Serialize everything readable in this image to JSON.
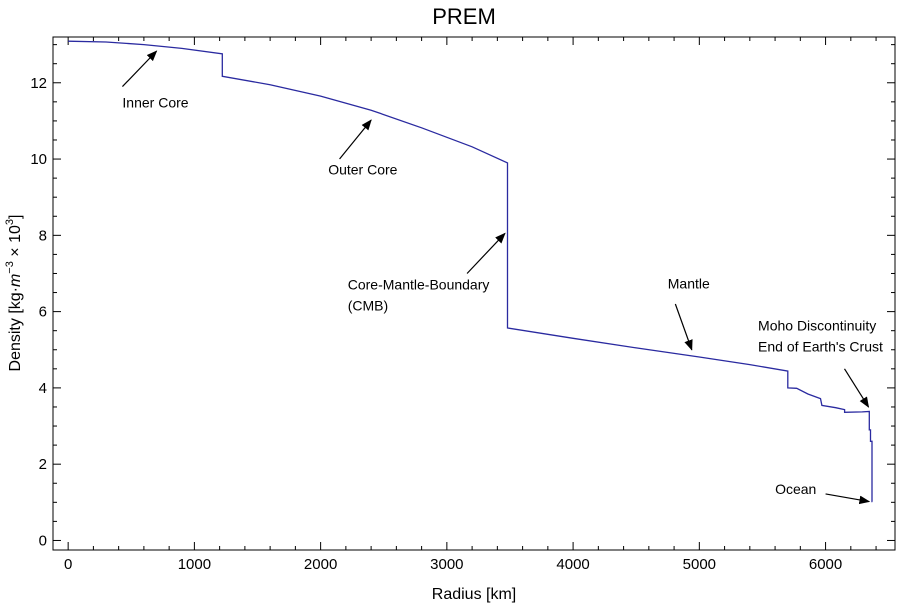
{
  "chart_data": {
    "type": "line",
    "title": "PREM",
    "xlabel": "Radius [km]",
    "ylabel": "Density [kg·m⁻³ × 10³]",
    "xlim": [
      -120,
      6550
    ],
    "ylim": [
      -0.25,
      13.2
    ],
    "x_ticks": [
      0,
      1000,
      2000,
      3000,
      4000,
      5000,
      6000
    ],
    "y_ticks": [
      0,
      2,
      4,
      6,
      8,
      10,
      12
    ],
    "grid": false,
    "line_color": "#2a2aa0",
    "arrow_color": "#000000",
    "series": [
      {
        "points": [
          [
            0,
            13.09
          ],
          [
            300,
            13.07
          ],
          [
            600,
            13.0
          ],
          [
            900,
            12.9
          ],
          [
            1221.5,
            12.76
          ],
          [
            1221.5,
            12.17
          ],
          [
            1600,
            11.95
          ],
          [
            2000,
            11.65
          ],
          [
            2400,
            11.28
          ],
          [
            2800,
            10.82
          ],
          [
            3200,
            10.32
          ],
          [
            3480,
            9.9
          ],
          [
            3480,
            5.57
          ],
          [
            4000,
            5.3
          ],
          [
            4500,
            5.05
          ],
          [
            5000,
            4.81
          ],
          [
            5400,
            4.61
          ],
          [
            5701,
            4.44
          ],
          [
            5701,
            4.0
          ],
          [
            5771,
            3.99
          ],
          [
            5860,
            3.84
          ],
          [
            5960,
            3.72
          ],
          [
            5971,
            3.54
          ],
          [
            6080,
            3.48
          ],
          [
            6151,
            3.43
          ],
          [
            6151,
            3.36
          ],
          [
            6291,
            3.37
          ],
          [
            6346.6,
            3.38
          ],
          [
            6346.6,
            2.9
          ],
          [
            6356,
            2.9
          ],
          [
            6356,
            2.6
          ],
          [
            6368,
            2.6
          ],
          [
            6368,
            1.02
          ],
          [
            6371,
            1.02
          ]
        ]
      }
    ],
    "annotations": [
      {
        "lines": [
          "Inner Core"
        ],
        "text_at": [
          430,
          11.35
        ],
        "arrow_from": [
          430,
          11.9
        ],
        "arrow_to": [
          700,
          12.83
        ]
      },
      {
        "lines": [
          "Outer Core"
        ],
        "text_at": [
          2060,
          9.6
        ],
        "arrow_from": [
          2150,
          10.0
        ],
        "arrow_to": [
          2400,
          11.02
        ]
      },
      {
        "lines": [
          "Core-Mantle-Boundary",
          "(CMB)"
        ],
        "text_at": [
          2215,
          6.58
        ],
        "arrow_from": [
          3160,
          7.0
        ],
        "arrow_to": [
          3460,
          8.05
        ]
      },
      {
        "lines": [
          "Mantle"
        ],
        "text_at": [
          4750,
          6.6
        ],
        "arrow_from": [
          4810,
          6.2
        ],
        "arrow_to": [
          4940,
          5.0
        ]
      },
      {
        "lines": [
          "Moho Discontinuity",
          "End of Earth's Crust"
        ],
        "text_at": [
          5465,
          5.5
        ],
        "arrow_from": [
          6150,
          4.5
        ],
        "arrow_to": [
          6340,
          3.5
        ]
      },
      {
        "lines": [
          "Ocean"
        ],
        "text_at": [
          5600,
          1.22
        ],
        "arrow_from": [
          6000,
          1.22
        ],
        "arrow_to": [
          6345,
          1.02
        ]
      }
    ]
  }
}
